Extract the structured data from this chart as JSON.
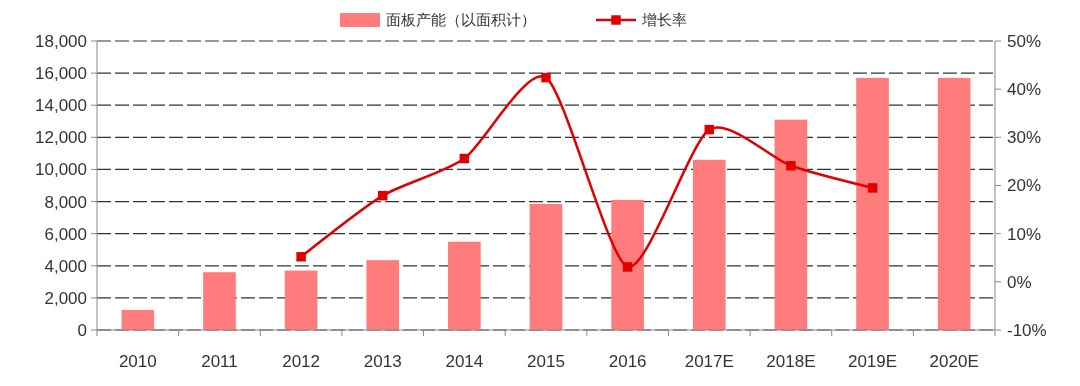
{
  "chart_data": {
    "type": "bar",
    "categories": [
      "2010",
      "2011",
      "2012",
      "2013",
      "2014",
      "2015",
      "2016",
      "2017E",
      "2018E",
      "2019E",
      "2020E"
    ],
    "series": [
      {
        "name": "面板产能（以面积计）",
        "color": "#ff7c7c",
        "values": [
          1250,
          3600,
          3700,
          4350,
          5500,
          7850,
          8100,
          10600,
          13100,
          15700,
          15700
        ]
      },
      {
        "name": "增长率",
        "type": "line",
        "axis": "y2",
        "color": "#e00000",
        "marker": "square",
        "values": [
          null,
          null,
          5.2,
          17.9,
          25.6,
          42.4,
          3.1,
          31.6,
          24.1,
          19.5,
          null
        ]
      }
    ],
    "ylim": [
      0,
      18000
    ],
    "yticks": [
      {
        "value": 0,
        "label": "0"
      },
      {
        "value": 2000,
        "label": "2,000"
      },
      {
        "value": 4000,
        "label": "4,000"
      },
      {
        "value": 6000,
        "label": "6,000"
      },
      {
        "value": 8000,
        "label": "8,000"
      },
      {
        "value": 10000,
        "label": "10,000"
      },
      {
        "value": 12000,
        "label": "12,000"
      },
      {
        "value": 14000,
        "label": "14,000"
      },
      {
        "value": 16000,
        "label": "16,000"
      },
      {
        "value": 18000,
        "label": "18,000"
      }
    ],
    "y2lim": [
      -10,
      50
    ],
    "y2ticks": [
      {
        "value": -10,
        "label": "-10%"
      },
      {
        "value": 0,
        "label": "0%"
      },
      {
        "value": 10,
        "label": "10%"
      },
      {
        "value": 20,
        "label": "20%"
      },
      {
        "value": 30,
        "label": "30%"
      },
      {
        "value": 40,
        "label": "40%"
      },
      {
        "value": 50,
        "label": "50%"
      }
    ],
    "grid": "y",
    "legend": "top"
  }
}
